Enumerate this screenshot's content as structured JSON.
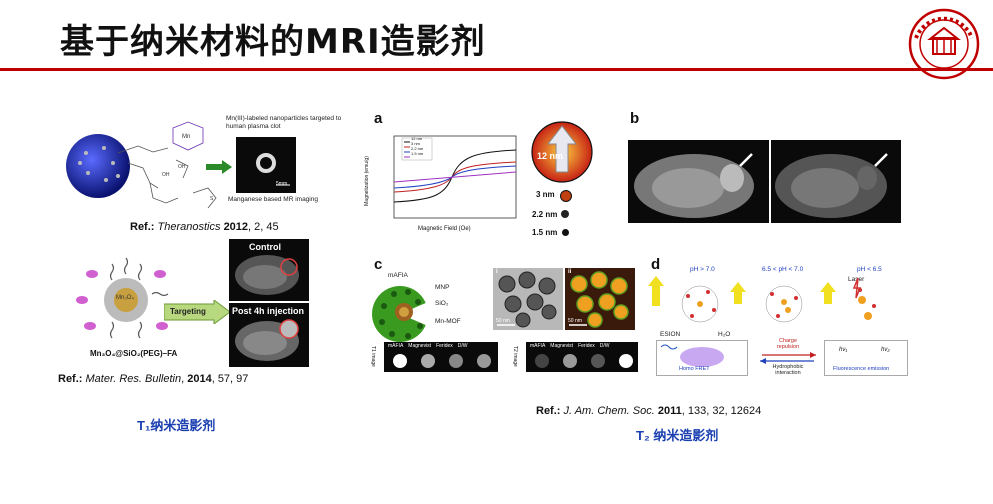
{
  "slide": {
    "title": "基于纳米材料的MRI造影剂"
  },
  "left": {
    "top_figure": {
      "label_right_top": "Mn(III)-labeled nanoparticles targeted to human plasma clot",
      "label_right_bottom": "Manganese based MR imaging",
      "scale": "5mm"
    },
    "ref1": {
      "prefix": "Ref.:",
      "journal": "Theranostics",
      "year": "2012",
      "rest": ", 2, 45"
    },
    "bottom_figure": {
      "control_label": "Control",
      "post_label": "Post 4h injection",
      "targeting_label": "Targeting",
      "core_label": "Mn₃O₄",
      "formula": "Mn₃O₄@SiO₂(PEG)–FA"
    },
    "ref2": {
      "prefix": "Ref.:",
      "journal": "Mater. Res. Bulletin",
      "year": "2014",
      "rest": ", 57, 97"
    },
    "caption": "T₁纳米造影剂"
  },
  "right": {
    "panel_a": {
      "letter": "a",
      "xlabel": "Magnetic Field (Oe)",
      "ylabel": "Magnetization (emu/g)",
      "legend": [
        "12 nm",
        "3 nm",
        "2.2 nm",
        "1.5 nm"
      ],
      "arrow_label": "12 nm",
      "sizes": [
        "3 nm",
        "2.2 nm",
        "1.5 nm"
      ]
    },
    "panel_b": {
      "letter": "b"
    },
    "panel_c": {
      "letter": "c",
      "mafia": "mAFIA",
      "mnp": "MNP",
      "sio2": "SiO₂",
      "mnmof": "Mn-MOF",
      "tem_i": "i",
      "tem_ii": "ii",
      "scale1": "50 nm",
      "scale2": "50 nm",
      "row1_side": "T1 image",
      "row2_side": "T2 image",
      "row_labels": [
        "mAFIA",
        "Magnevist",
        "Feridex",
        "D/W"
      ]
    },
    "panel_d": {
      "letter": "d",
      "ph1": "pH > 7.0",
      "ph2": "6.5 < pH < 7.0",
      "ph3": "pH < 6.5",
      "laser": "Laser",
      "esion": "ESION",
      "h2o": "H₂O",
      "charge": "Charge repulsion",
      "hydro": "Hydrophobic interaction",
      "homo": "Homo FRET",
      "fluor": "Fluorescence emission",
      "hv1": "hν₁",
      "hv2": "hν₂"
    },
    "ref": {
      "prefix": "Ref.:",
      "journal": "J. Am. Chem. Soc.",
      "year": "2011",
      "rest": ", 133, 32, 12624"
    },
    "caption": "T₂ 纳米造影剂"
  },
  "colors": {
    "title_rule": "#c00000",
    "caption": "#1a3fb0"
  }
}
